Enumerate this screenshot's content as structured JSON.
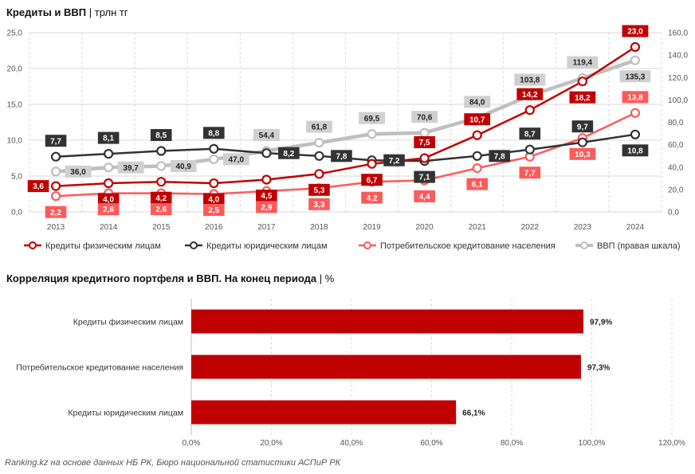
{
  "titles": {
    "chart1_main": "Кредиты и ВВП",
    "chart1_unit": "трлн тг",
    "chart2_main": "Корреляция кредитного портфеля и ВВП. На конец периода",
    "chart2_unit": "%"
  },
  "footer": "Ranking.kz на основе данных НБ РК, Бюро национальной статистики АСПиР РК",
  "colors": {
    "fiz": "#c00000",
    "yur": "#333333",
    "cons": "#ff5a5a",
    "gdp": "#bfbfbf",
    "bar": "#c00000",
    "grid": "#d9d9d9"
  },
  "chart_data": [
    {
      "type": "line",
      "title": "Кредиты и ВВП | трлн тг",
      "x": [
        "2013",
        "2014",
        "2015",
        "2016",
        "2017",
        "2018",
        "2019",
        "2020",
        "2021",
        "2022",
        "2023",
        "2024"
      ],
      "ylim_left": [
        0,
        25
      ],
      "yticks_left": [
        "0,0",
        "5,0",
        "10,0",
        "15,0",
        "20,0",
        "25,0"
      ],
      "ylim_right": [
        0,
        160
      ],
      "yticks_right": [
        "0,0",
        "20,0",
        "40,0",
        "60,0",
        "80,0",
        "100,0",
        "120,0",
        "140,0",
        "160,0"
      ],
      "series": [
        {
          "name": "Кредиты физическим лицам",
          "key": "fiz",
          "axis": "left",
          "values": [
            3.6,
            4.0,
            4.2,
            4.0,
            4.5,
            5.3,
            6.7,
            7.5,
            10.7,
            14.2,
            18.2,
            23.0
          ],
          "labels": [
            "3,6",
            "4,0",
            "4,2",
            "4,0",
            "4,5",
            "5,3",
            "6,7",
            "7,5",
            "10,7",
            "14,2",
            "18,2",
            "23,0"
          ]
        },
        {
          "name": "Кредиты юридическим лицам",
          "key": "yur",
          "axis": "left",
          "values": [
            7.7,
            8.1,
            8.5,
            8.8,
            8.2,
            7.8,
            7.2,
            7.1,
            7.8,
            8.7,
            9.7,
            10.8
          ],
          "labels": [
            "7,7",
            "8,1",
            "8,5",
            "8,8",
            "8,2",
            "7,8",
            "7,2",
            "7,1",
            "7,8",
            "8,7",
            "9,7",
            "10,8"
          ]
        },
        {
          "name": "Потребительское кредитование населения",
          "key": "cons",
          "axis": "left",
          "values": [
            2.2,
            2.6,
            2.6,
            2.5,
            2.9,
            3.3,
            4.2,
            4.4,
            6.1,
            7.7,
            10.3,
            13.8
          ],
          "labels": [
            "2,2",
            "2,6",
            "2,6",
            "2,5",
            "2,9",
            "3,3",
            "4,2",
            "4,4",
            "6,1",
            "7,7",
            "10,3",
            "13,8"
          ]
        },
        {
          "name": "ВВП (правая шкала)",
          "key": "gdp",
          "axis": "right",
          "values": [
            36.0,
            39.7,
            40.9,
            47.0,
            54.4,
            61.8,
            69.5,
            70.6,
            84.0,
            103.8,
            119.4,
            135.3
          ],
          "labels": [
            "36,0",
            "39,7",
            "40,9",
            "47,0",
            "54,4",
            "61,8",
            "69,5",
            "70,6",
            "84,0",
            "103,8",
            "119,4",
            "135,3"
          ]
        }
      ]
    },
    {
      "type": "bar",
      "orientation": "horizontal",
      "title": "Корреляция кредитного портфеля и ВВП. На конец периода | %",
      "categories": [
        "Кредиты физическим лицам",
        "Потребительское кредитование населения",
        "Кредиты юридическим лицам"
      ],
      "values": [
        97.9,
        97.3,
        66.1
      ],
      "labels": [
        "97,9%",
        "97,3%",
        "66,1%"
      ],
      "xlim": [
        0,
        120
      ],
      "xticks": [
        "0,0%",
        "20,0%",
        "40,0%",
        "60,0%",
        "80,0%",
        "100,0%",
        "120,0%"
      ]
    }
  ]
}
